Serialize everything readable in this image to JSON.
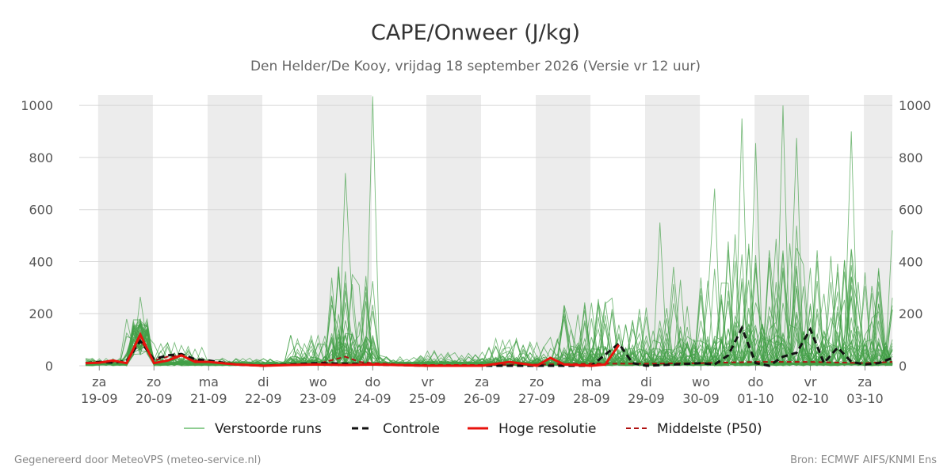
{
  "chart_data": {
    "type": "line",
    "title": "CAPE/Onweer (J/kg)",
    "subtitle": "Den Helder/De Kooy, vrijdag 18 september 2026 (Versie vr 12 uur)",
    "ylim": [
      0,
      1040
    ],
    "yticks": [
      0,
      200,
      400,
      600,
      800,
      1000
    ],
    "grid": true,
    "legend_position": "bottom",
    "x_days": [
      {
        "day": "za",
        "date": "19-09"
      },
      {
        "day": "zo",
        "date": "20-09"
      },
      {
        "day": "ma",
        "date": "21-09"
      },
      {
        "day": "di",
        "date": "22-09"
      },
      {
        "day": "wo",
        "date": "23-09"
      },
      {
        "day": "do",
        "date": "24-09"
      },
      {
        "day": "vr",
        "date": "25-09"
      },
      {
        "day": "za",
        "date": "26-09"
      },
      {
        "day": "zo",
        "date": "27-09"
      },
      {
        "day": "ma",
        "date": "28-09"
      },
      {
        "day": "di",
        "date": "29-09"
      },
      {
        "day": "wo",
        "date": "30-09"
      },
      {
        "day": "do",
        "date": "01-10"
      },
      {
        "day": "vr",
        "date": "02-10"
      },
      {
        "day": "za",
        "date": "03-10"
      }
    ],
    "x_range_days": [
      -0.25,
      14.5
    ],
    "weekend_bands": [
      [
        -0.02,
        0.98
      ],
      [
        1.98,
        2.98
      ],
      [
        3.98,
        4.98
      ],
      [
        5.98,
        6.98
      ],
      [
        7.98,
        8.98
      ],
      [
        9.98,
        10.98
      ],
      [
        11.98,
        12.98
      ],
      [
        13.98,
        14.5
      ]
    ],
    "series_meta": {
      "perturbed": {
        "name": "Verstoorde runs",
        "color": "#4caf50"
      },
      "control": {
        "name": "Controle",
        "color": "#111111"
      },
      "hires": {
        "name": "Hoge resolutie",
        "color": "#e8120c"
      },
      "p50": {
        "name": "Middelste (P50)",
        "color": "#b01010"
      }
    },
    "control": [
      [
        -0.25,
        10
      ],
      [
        0,
        15
      ],
      [
        0.25,
        12
      ],
      [
        0.5,
        18
      ],
      [
        0.75,
        95
      ],
      [
        1,
        25
      ],
      [
        1.25,
        40
      ],
      [
        1.5,
        45
      ],
      [
        1.75,
        25
      ],
      [
        2,
        20
      ],
      [
        2.5,
        5
      ],
      [
        3,
        0
      ],
      [
        3.5,
        5
      ],
      [
        4,
        10
      ],
      [
        4.5,
        8
      ],
      [
        5,
        5
      ],
      [
        6,
        0
      ],
      [
        7,
        0
      ],
      [
        8,
        0
      ],
      [
        9,
        0
      ],
      [
        9.5,
        85
      ],
      [
        9.75,
        10
      ],
      [
        10,
        0
      ],
      [
        10.5,
        5
      ],
      [
        11,
        10
      ],
      [
        11.25,
        5
      ],
      [
        11.5,
        40
      ],
      [
        11.75,
        145
      ],
      [
        12,
        10
      ],
      [
        12.25,
        0
      ],
      [
        12.5,
        35
      ],
      [
        12.75,
        50
      ],
      [
        13,
        140
      ],
      [
        13.25,
        10
      ],
      [
        13.5,
        70
      ],
      [
        13.75,
        15
      ],
      [
        14,
        5
      ],
      [
        14.25,
        10
      ],
      [
        14.5,
        30
      ]
    ],
    "hires": [
      [
        -0.25,
        10
      ],
      [
        0,
        12
      ],
      [
        0.25,
        20
      ],
      [
        0.5,
        10
      ],
      [
        0.75,
        120
      ],
      [
        1,
        10
      ],
      [
        1.25,
        20
      ],
      [
        1.5,
        40
      ],
      [
        1.75,
        15
      ],
      [
        2,
        15
      ],
      [
        2.5,
        5
      ],
      [
        3,
        0
      ],
      [
        3.5,
        3
      ],
      [
        4,
        5
      ],
      [
        4.5,
        3
      ],
      [
        5,
        5
      ],
      [
        6,
        0
      ],
      [
        7,
        0
      ],
      [
        7.5,
        15
      ],
      [
        8,
        0
      ],
      [
        8.25,
        30
      ],
      [
        8.5,
        5
      ],
      [
        9,
        0
      ],
      [
        9.25,
        5
      ],
      [
        9.5,
        80
      ]
    ],
    "p50": [
      [
        -0.25,
        10
      ],
      [
        0,
        12
      ],
      [
        0.25,
        15
      ],
      [
        0.5,
        12
      ],
      [
        0.75,
        100
      ],
      [
        1,
        20
      ],
      [
        1.25,
        35
      ],
      [
        1.5,
        38
      ],
      [
        1.75,
        20
      ],
      [
        2,
        15
      ],
      [
        2.5,
        5
      ],
      [
        3,
        2
      ],
      [
        3.5,
        5
      ],
      [
        4,
        8
      ],
      [
        4.5,
        35
      ],
      [
        4.75,
        15
      ],
      [
        5,
        10
      ],
      [
        5.5,
        5
      ],
      [
        6,
        3
      ],
      [
        7,
        3
      ],
      [
        8,
        5
      ],
      [
        9,
        8
      ],
      [
        10,
        8
      ],
      [
        11,
        10
      ],
      [
        12,
        15
      ],
      [
        13,
        15
      ],
      [
        14,
        10
      ],
      [
        14.5,
        15
      ]
    ]
  },
  "legend": {
    "perturbed": "Verstoorde runs",
    "control": "Controle",
    "hires": "Hoge resolutie",
    "p50": "Middelste (P50)"
  },
  "footer": {
    "left": "Gegenereerd door MeteoVPS (meteo-service.nl)",
    "right": "Bron: ECMWF AIFS/KNMI Ens"
  }
}
